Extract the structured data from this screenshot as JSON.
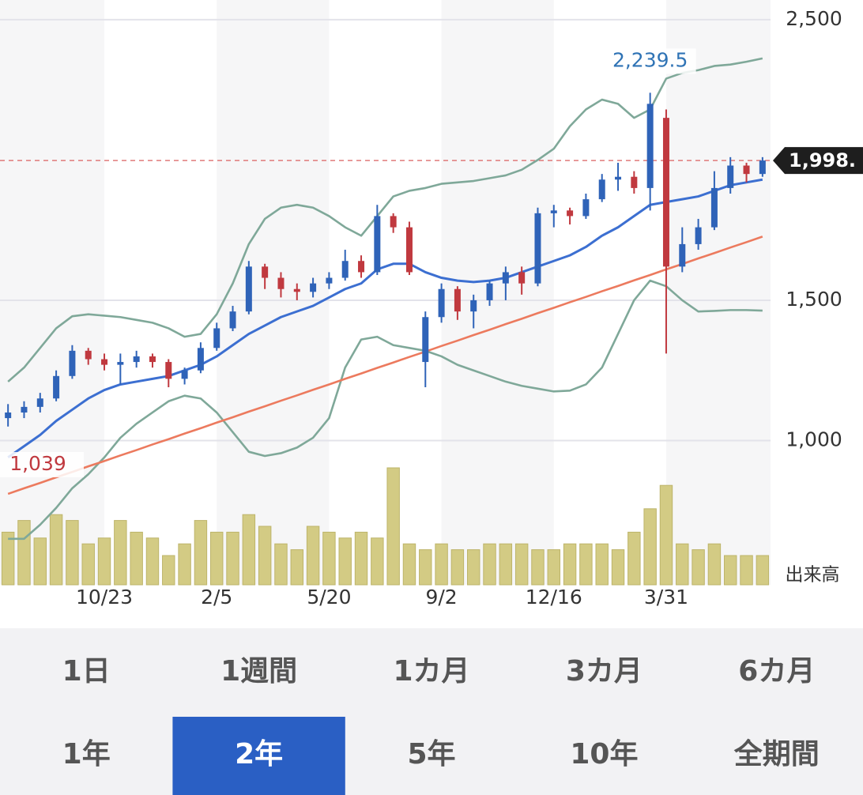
{
  "chart_data": {
    "type": "candlestick",
    "categories": [
      null,
      null,
      null,
      null,
      null,
      null,
      "10/23",
      null,
      null,
      null,
      null,
      null,
      null,
      "2/5",
      null,
      null,
      null,
      null,
      null,
      null,
      "5/20",
      null,
      null,
      null,
      null,
      null,
      null,
      "9/2",
      null,
      null,
      null,
      null,
      null,
      null,
      "12/16",
      null,
      null,
      null,
      null,
      null,
      null,
      "3/31",
      null,
      null,
      null,
      null,
      null,
      null
    ],
    "open": [
      1080,
      1100,
      1120,
      1150,
      1230,
      1320,
      1290,
      1270,
      1280,
      1300,
      1280,
      1220,
      1250,
      1330,
      1400,
      1460,
      1620,
      1580,
      1540,
      1530,
      1560,
      1580,
      1640,
      1600,
      1800,
      1760,
      1280,
      1440,
      1540,
      1460,
      1500,
      1560,
      1600,
      1560,
      1810,
      1820,
      1800,
      1860,
      1930,
      1940,
      1900,
      2150,
      1620,
      1700,
      1760,
      1900,
      1980,
      1950
    ],
    "high": [
      1130,
      1140,
      1170,
      1250,
      1340,
      1330,
      1310,
      1310,
      1320,
      1310,
      1290,
      1260,
      1350,
      1420,
      1480,
      1640,
      1630,
      1600,
      1560,
      1580,
      1600,
      1680,
      1660,
      1840,
      1810,
      1780,
      1460,
      1560,
      1550,
      1520,
      1570,
      1620,
      1620,
      1830,
      1840,
      1830,
      1880,
      1950,
      1990,
      1960,
      2239.5,
      2180,
      1760,
      1790,
      1960,
      2010,
      1990,
      2010
    ],
    "low": [
      1050,
      1080,
      1100,
      1140,
      1220,
      1270,
      1250,
      1200,
      1260,
      1260,
      1190,
      1200,
      1240,
      1320,
      1390,
      1450,
      1540,
      1510,
      1500,
      1510,
      1540,
      1570,
      1580,
      1590,
      1740,
      1590,
      1190,
      1420,
      1430,
      1400,
      1480,
      1500,
      1520,
      1550,
      1760,
      1770,
      1790,
      1850,
      1890,
      1880,
      1820,
      1310,
      1600,
      1680,
      1750,
      1880,
      1920,
      1940
    ],
    "close": [
      1100,
      1120,
      1150,
      1230,
      1320,
      1290,
      1270,
      1280,
      1300,
      1280,
      1220,
      1250,
      1330,
      1400,
      1460,
      1620,
      1580,
      1540,
      1530,
      1560,
      1580,
      1640,
      1600,
      1800,
      1760,
      1600,
      1440,
      1540,
      1460,
      1500,
      1560,
      1600,
      1560,
      1810,
      1820,
      1800,
      1860,
      1930,
      1940,
      1900,
      2200,
      1620,
      1700,
      1760,
      1900,
      1980,
      1950,
      1998
    ],
    "up_color": "#2f63b8",
    "down_color": "#c0393f",
    "overlays": [
      {
        "color": "#7fa899",
        "values": [
          1210,
          1260,
          1330,
          1400,
          1443,
          1450,
          1445,
          1440,
          1430,
          1420,
          1400,
          1370,
          1380,
          1450,
          1560,
          1700,
          1790,
          1830,
          1840,
          1830,
          1800,
          1760,
          1730,
          1800,
          1870,
          1890,
          1900,
          1915,
          1920,
          1925,
          1935,
          1945,
          1965,
          2000,
          2040,
          2120,
          2180,
          2215,
          2200,
          2150,
          2180,
          2290,
          2310,
          2320,
          2335,
          2340,
          2350,
          2362
        ]
      },
      {
        "color": "#7fa899",
        "values": [
          650,
          650,
          700,
          760,
          830,
          880,
          940,
          1010,
          1060,
          1100,
          1140,
          1160,
          1150,
          1100,
          1030,
          960,
          945,
          955,
          975,
          1010,
          1080,
          1260,
          1360,
          1370,
          1340,
          1330,
          1320,
          1300,
          1270,
          1250,
          1230,
          1210,
          1195,
          1185,
          1175,
          1178,
          1200,
          1260,
          1380,
          1500,
          1570,
          1550,
          1500,
          1460,
          1462,
          1465,
          1465,
          1463
        ]
      },
      {
        "color": "#ec7a5e",
        "values": [
          810,
          830,
          849,
          869,
          888,
          908,
          927,
          947,
          966,
          986,
          1005,
          1025,
          1044,
          1064,
          1083,
          1103,
          1122,
          1142,
          1161,
          1181,
          1200,
          1220,
          1239,
          1259,
          1278,
          1298,
          1317,
          1337,
          1356,
          1376,
          1395,
          1415,
          1434,
          1454,
          1473,
          1493,
          1512,
          1532,
          1551,
          1571,
          1590,
          1610,
          1629,
          1649,
          1668,
          1688,
          1707,
          1727
        ]
      },
      {
        "color": "#3c6fd1",
        "values": [
          940,
          980,
          1020,
          1070,
          1110,
          1150,
          1180,
          1200,
          1210,
          1220,
          1230,
          1250,
          1270,
          1300,
          1340,
          1380,
          1410,
          1440,
          1460,
          1480,
          1510,
          1540,
          1560,
          1610,
          1630,
          1630,
          1600,
          1580,
          1570,
          1565,
          1570,
          1580,
          1600,
          1620,
          1640,
          1660,
          1690,
          1730,
          1760,
          1800,
          1840,
          1850,
          1860,
          1870,
          1890,
          1910,
          1920,
          1930
        ]
      }
    ],
    "volume": {
      "label": "出来高",
      "color": "#d3cb84",
      "values": [
        45,
        55,
        40,
        60,
        55,
        35,
        40,
        55,
        45,
        40,
        25,
        35,
        55,
        45,
        45,
        60,
        50,
        35,
        30,
        50,
        45,
        40,
        45,
        40,
        100,
        35,
        30,
        35,
        30,
        30,
        35,
        35,
        35,
        30,
        30,
        35,
        35,
        35,
        30,
        45,
        65,
        85,
        35,
        30,
        35,
        25,
        25,
        25
      ]
    },
    "y2lim": [
      0,
      100
    ],
    "ylim": [
      486,
      2570
    ],
    "yticks": [
      {
        "value": 1000,
        "label": "1,000"
      },
      {
        "value": 1500,
        "label": "1,500"
      },
      {
        "value": 2500,
        "label": "2,500"
      }
    ],
    "grid": true,
    "last_price": {
      "value": 1998,
      "label": "1,998."
    },
    "annotations": [
      {
        "value": 2239.5,
        "label": "2,239.5",
        "color": "#2f73b5"
      },
      {
        "value": 1039,
        "label": "1,039",
        "color": "#c0393f"
      }
    ]
  },
  "range_buttons": {
    "rows": [
      [
        "1日",
        "1週間",
        "1カ月",
        "3カ月",
        "6カ月"
      ],
      [
        "1年",
        "2年",
        "5年",
        "10年",
        "全期間"
      ]
    ],
    "selected": "2年"
  }
}
